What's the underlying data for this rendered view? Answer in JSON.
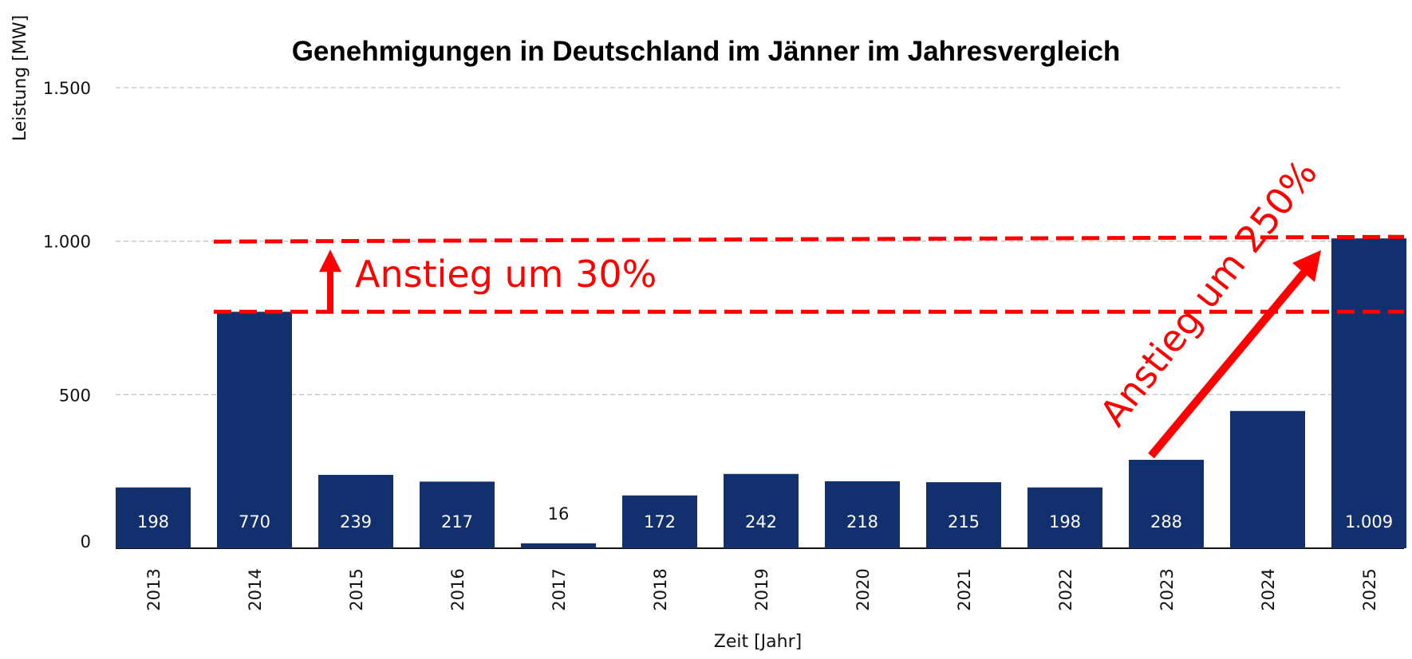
{
  "chart_data": {
    "type": "bar",
    "title": "Genehmigungen in Deutschland im Jänner im Jahresvergleich",
    "xlabel": "Zeit [Jahr]",
    "ylabel": "Leistung [MW]",
    "ylim": [
      0,
      1500
    ],
    "yticks": [
      0,
      500,
      1000,
      1500
    ],
    "ytick_labels": [
      "0",
      "500",
      "1.000",
      "1.500"
    ],
    "grid": "horizontal dashed",
    "categories": [
      "2013",
      "2014",
      "2015",
      "2016",
      "2017",
      "2018",
      "2019",
      "2020",
      "2021",
      "2022",
      "2023",
      "2024",
      "2025"
    ],
    "values": [
      198,
      770,
      239,
      217,
      16,
      172,
      242,
      218,
      215,
      198,
      288,
      447,
      1009
    ],
    "value_labels": [
      "198",
      "770",
      "239",
      "217",
      "16",
      "172",
      "242",
      "218",
      "215",
      "198",
      "288",
      "",
      "1.009"
    ],
    "bar_color": "#13306e",
    "annotations": [
      {
        "text": "Anstieg um 30%",
        "color": "#ff0000",
        "from_value": 770,
        "to_value": 1009
      },
      {
        "text": "Anstieg um 250%",
        "color": "#ff0000",
        "from_value": 288,
        "to_value": 1009
      }
    ]
  }
}
